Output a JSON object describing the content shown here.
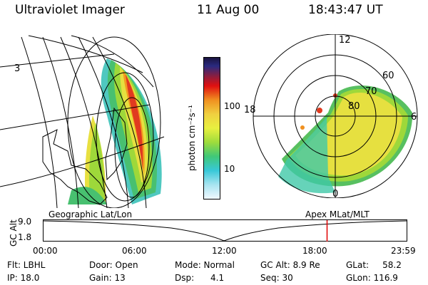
{
  "header": {
    "instrument": "Ultraviolet Imager",
    "date": "11 Aug 00",
    "time": "18:43:47 UT"
  },
  "colorbar": {
    "unit_label": "photon cm⁻²s⁻¹",
    "ticks": [
      "100",
      "10"
    ],
    "scale": "log"
  },
  "geo_map": {
    "corner_label": "3"
  },
  "polar": {
    "mlt_labels": [
      "12",
      "18",
      "6",
      "0"
    ],
    "lat_labels": [
      "60",
      "70",
      "80"
    ]
  },
  "timeline": {
    "left_title": "Geographic Lat/Lon",
    "right_title": "Apex MLat/MLT",
    "axis_name": "GC Alt",
    "y_ticks": [
      "9.0",
      "1.8"
    ],
    "x_ticks": [
      "00:00",
      "06:00",
      "12:00",
      "18:00",
      "23:59"
    ],
    "marker_time": "18:43:47"
  },
  "info": {
    "flt": "Flt: LBHL",
    "ip": "IP: 18.0",
    "door": "Door: Open",
    "gain": "Gain: 13",
    "mode": "Mode: Normal",
    "dsp": "Dsp:      4.1",
    "gcalt": "GC Alt: 8.9 Re",
    "seq": "Seq: 30",
    "glat": "GLat:     58.2",
    "glon": "GLon: 116.9"
  },
  "colors": {
    "marker": "#e00000",
    "ink": "#000000"
  }
}
